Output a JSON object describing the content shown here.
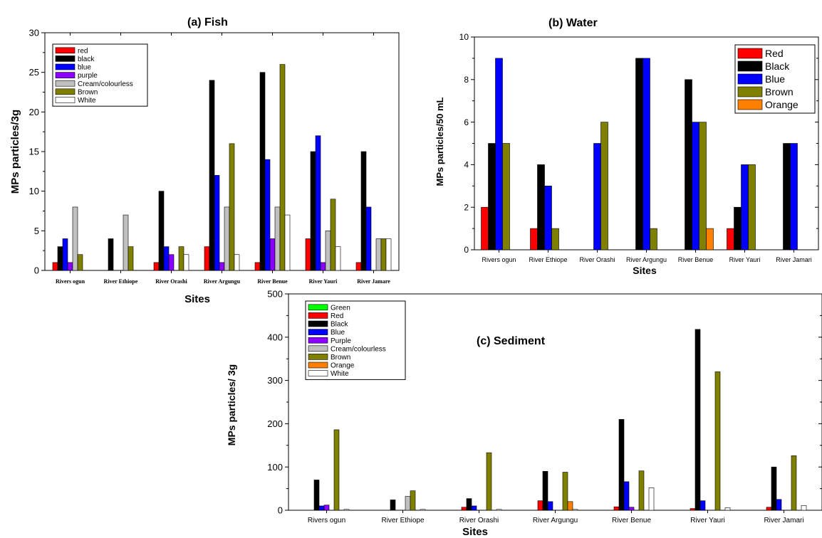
{
  "chart_data": [
    {
      "id": "fish",
      "type": "bar",
      "title": "(a) Fish",
      "xlabel": "Sites",
      "ylabel": "MPs particles/3g",
      "ylim": [
        0,
        30
      ],
      "yticks": [
        0,
        5,
        10,
        15,
        20,
        25,
        30
      ],
      "legend_position": "top-left",
      "categories": [
        "Rivers ogun",
        "River Ethiope",
        "River Orashi",
        "River Argungu",
        "River Benue",
        "River Yauri",
        "River Jamare"
      ],
      "series": [
        {
          "name": "red",
          "color": "#ff0000",
          "values": [
            1,
            0,
            1,
            3,
            1,
            4,
            1
          ]
        },
        {
          "name": "black",
          "color": "#000000",
          "values": [
            3,
            4,
            10,
            24,
            25,
            15,
            15
          ]
        },
        {
          "name": "blue",
          "color": "#0000ff",
          "values": [
            4,
            0,
            3,
            12,
            14,
            17,
            8
          ]
        },
        {
          "name": "purple",
          "color": "#8b00ff",
          "values": [
            1,
            0,
            2,
            1,
            4,
            1,
            0
          ]
        },
        {
          "name": "Cream/colourless",
          "color": "#c0c0c0",
          "values": [
            8,
            7,
            0,
            8,
            8,
            5,
            4
          ]
        },
        {
          "name": "Brown",
          "color": "#808000",
          "values": [
            2,
            3,
            3,
            16,
            26,
            9,
            4
          ]
        },
        {
          "name": "White",
          "color": "#ffffff",
          "values": [
            0,
            0,
            2,
            2,
            7,
            3,
            4
          ]
        }
      ]
    },
    {
      "id": "water",
      "type": "bar",
      "title": "(b) Water",
      "xlabel": "Sites",
      "ylabel": "MPs particles/50 mL",
      "ylim": [
        0,
        10
      ],
      "yticks": [
        0,
        2,
        4,
        6,
        8,
        10
      ],
      "legend_position": "top-right",
      "categories": [
        "Rivers ogun",
        "River Ethiope",
        "River Orashi",
        "River Argungu",
        "River Benue",
        "River Yauri",
        "River Jamari"
      ],
      "series": [
        {
          "name": "Red",
          "color": "#ff0000",
          "values": [
            2,
            1,
            0,
            0,
            0,
            1,
            0
          ]
        },
        {
          "name": "Black",
          "color": "#000000",
          "values": [
            5,
            4,
            0,
            9,
            8,
            2,
            5
          ]
        },
        {
          "name": "Blue",
          "color": "#0000ff",
          "values": [
            9,
            3,
            5,
            9,
            6,
            4,
            5
          ]
        },
        {
          "name": "Brown",
          "color": "#808000",
          "values": [
            5,
            1,
            6,
            1,
            6,
            4,
            0
          ]
        },
        {
          "name": "Orange",
          "color": "#ff8000",
          "values": [
            0,
            0,
            0,
            0,
            1,
            0,
            0
          ]
        }
      ]
    },
    {
      "id": "sediment",
      "type": "bar",
      "title": "(c) Sediment",
      "xlabel": "Sites",
      "ylabel": "MPs particles/ 3g",
      "ylim": [
        0,
        500
      ],
      "yticks": [
        0,
        100,
        200,
        300,
        400,
        500
      ],
      "legend_position": "top-left",
      "categories": [
        "Rivers ogun",
        "River Ethiope",
        "River Orashi",
        "River Argungu",
        "River Benue",
        "River Yauri",
        "River Jamari"
      ],
      "series": [
        {
          "name": "Green",
          "color": "#00ff00",
          "values": [
            0,
            0,
            0,
            0,
            0,
            0,
            0
          ]
        },
        {
          "name": "Red",
          "color": "#ff0000",
          "values": [
            0,
            0,
            7,
            22,
            8,
            4,
            7
          ]
        },
        {
          "name": "Black",
          "color": "#000000",
          "values": [
            70,
            24,
            27,
            90,
            210,
            418,
            100
          ]
        },
        {
          "name": "Blue",
          "color": "#0000ff",
          "values": [
            10,
            0,
            10,
            20,
            66,
            22,
            25
          ]
        },
        {
          "name": "Purple",
          "color": "#8b00ff",
          "values": [
            12,
            0,
            0,
            0,
            7,
            0,
            0
          ]
        },
        {
          "name": "Cream/colourless",
          "color": "#c0c0c0",
          "values": [
            0,
            32,
            0,
            0,
            0,
            0,
            0
          ]
        },
        {
          "name": "Brown",
          "color": "#808000",
          "values": [
            186,
            45,
            133,
            88,
            91,
            320,
            126
          ]
        },
        {
          "name": "Orange",
          "color": "#ff8000",
          "values": [
            0,
            0,
            0,
            20,
            0,
            0,
            0
          ]
        },
        {
          "name": "White",
          "color": "#ffffff",
          "values": [
            2,
            2,
            2,
            2,
            52,
            6,
            11
          ]
        }
      ]
    }
  ]
}
